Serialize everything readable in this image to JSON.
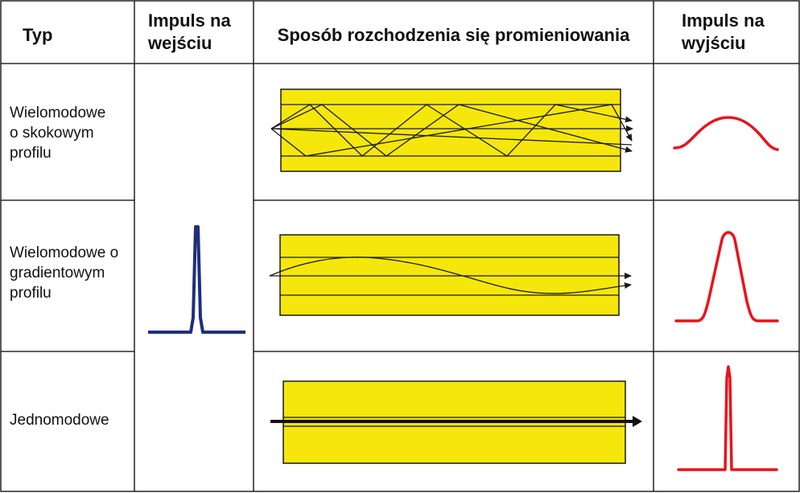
{
  "headers": {
    "type": "Typ",
    "input": [
      "Impuls na",
      "wejściu"
    ],
    "propagation": "Sposób rozchodzenia się promieniowania",
    "output": [
      "Impuls na",
      "wyjściu"
    ]
  },
  "rows": [
    {
      "type": [
        "Wielomodowe",
        "o skokowym",
        "profilu"
      ]
    },
    {
      "type": [
        "Wielomodowe o",
        "gradientowym",
        "profilu"
      ]
    },
    {
      "type": [
        "Jednomodowe"
      ]
    }
  ],
  "colors": {
    "core": "#f5e70c",
    "input_pulse": "#1f2f7a",
    "output_pulse": "#e8141c",
    "lines": "#1a1a1a"
  }
}
